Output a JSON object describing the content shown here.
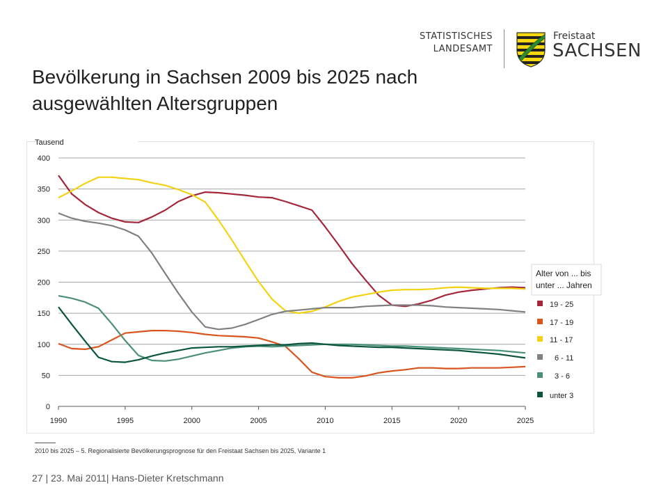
{
  "logo": {
    "line1": "STATISTISCHES",
    "line2": "LANDESAMT",
    "freistaat": "Freistaat",
    "sachsen": "SACHSEN"
  },
  "title": "Bevölkerung in Sachsen 2009 bis 2025 nach ausgewählten Altersgruppen",
  "footnote": "2010 bis 2025 – 5. Regionalisierte Bevölkerungsprognose für den Freistaat Sachsen bis 2025, Variante 1",
  "footer": {
    "page": "27",
    "text": "| 23. Mai 2011| Hans-Dieter Kretschmann"
  },
  "chart_data": {
    "type": "line",
    "title": "",
    "xlabel": "",
    "ylabel": "Tausend",
    "xlim": [
      1990,
      2025
    ],
    "ylim": [
      0,
      400
    ],
    "xticks": [
      1990,
      1995,
      2000,
      2005,
      2010,
      2015,
      2020,
      2025
    ],
    "yticks": [
      0,
      50,
      100,
      150,
      200,
      250,
      300,
      350,
      400
    ],
    "grid": true,
    "legend_title": "Alter von ... bis unter ... Jahren",
    "legend_placement": "right",
    "x": [
      1990,
      1991,
      1992,
      1993,
      1994,
      1995,
      1996,
      1997,
      1998,
      1999,
      2000,
      2001,
      2002,
      2003,
      2004,
      2005,
      2006,
      2007,
      2008,
      2009,
      2010,
      2011,
      2012,
      2013,
      2014,
      2015,
      2016,
      2017,
      2018,
      2019,
      2020,
      2021,
      2022,
      2023,
      2024,
      2025
    ],
    "series": [
      {
        "name": "19 - 25",
        "color": "#a5263a",
        "values": [
          372,
          342,
          325,
          312,
          303,
          297,
          296,
          305,
          316,
          330,
          339,
          345,
          344,
          342,
          340,
          337,
          336,
          330,
          323,
          316,
          289,
          260,
          230,
          204,
          179,
          163,
          161,
          165,
          171,
          179,
          184,
          187,
          189,
          191,
          192,
          191
        ]
      },
      {
        "name": "17 - 19",
        "color": "#d9541e",
        "values": [
          101,
          93,
          92,
          96,
          107,
          118,
          120,
          122,
          122,
          121,
          119,
          116,
          114,
          113,
          112,
          110,
          104,
          97,
          77,
          55,
          48,
          46,
          46,
          49,
          54,
          57,
          59,
          62,
          62,
          61,
          61,
          62,
          62,
          62,
          63,
          64
        ]
      },
      {
        "name": "11 - 17",
        "color": "#f3d212",
        "values": [
          336,
          347,
          359,
          369,
          369,
          367,
          365,
          360,
          356,
          349,
          341,
          329,
          300,
          268,
          234,
          201,
          173,
          154,
          150,
          153,
          160,
          169,
          176,
          180,
          184,
          187,
          188,
          188,
          189,
          191,
          192,
          191,
          190,
          190,
          190,
          189
        ]
      },
      {
        "name": "6 - 11",
        "color": "#808080",
        "values": [
          311,
          303,
          298,
          295,
          291,
          284,
          274,
          247,
          214,
          182,
          152,
          128,
          124,
          126,
          132,
          140,
          148,
          153,
          155,
          157,
          159,
          159,
          159,
          161,
          162,
          163,
          163,
          163,
          162,
          160,
          159,
          158,
          157,
          156,
          154,
          152
        ]
      },
      {
        "name": "3 - 6",
        "color": "#4a8f78",
        "values": [
          178,
          174,
          168,
          158,
          133,
          106,
          82,
          74,
          73,
          76,
          81,
          86,
          90,
          94,
          96,
          97,
          96,
          97,
          98,
          99,
          100,
          100,
          100,
          99,
          98,
          97,
          97,
          96,
          95,
          94,
          93,
          92,
          91,
          90,
          88,
          86
        ]
      },
      {
        "name": "unter 3",
        "color": "#0b5540",
        "values": [
          160,
          132,
          105,
          79,
          72,
          71,
          75,
          81,
          86,
          90,
          94,
          95,
          96,
          96,
          97,
          98,
          99,
          99,
          101,
          102,
          100,
          98,
          97,
          96,
          95,
          95,
          94,
          93,
          92,
          91,
          90,
          88,
          86,
          84,
          81,
          78
        ]
      }
    ]
  }
}
